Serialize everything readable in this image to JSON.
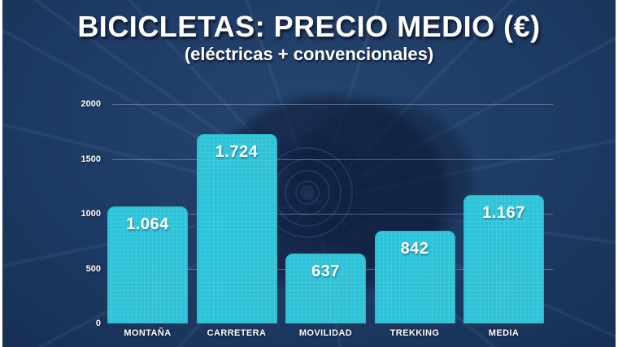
{
  "slide": {
    "title": "BICICLETAS: PRECIO MEDIO (€)",
    "subtitle": "(eléctricas + convencionales)"
  },
  "colors": {
    "background": "#1d3a63",
    "background_dark": "#152b4e",
    "bar": "#2cc3d8",
    "text": "#ffffff",
    "gridline_rgba": "rgba(202,218,240,0.35)"
  },
  "decor": {
    "spokes_icon": "bicycle-wheel-spokes",
    "center_icon": "bicycle-cassette-photo"
  },
  "chart_data": {
    "type": "bar",
    "title": "BICICLETAS: PRECIO MEDIO (€)",
    "subtitle": "(eléctricas + convencionales)",
    "categories": [
      "MONTAÑA",
      "CARRETERA",
      "MOVILIDAD",
      "TREKKING",
      "MEDIA"
    ],
    "values": [
      1064,
      1724,
      637,
      842,
      1167
    ],
    "value_labels": [
      "1.064",
      "1.724",
      "637",
      "842",
      "1.167"
    ],
    "ylim": [
      0,
      2000
    ],
    "yticks": [
      0,
      500,
      1000,
      1500,
      2000
    ],
    "ytick_labels": [
      "0",
      "500",
      "1000",
      "1500",
      "2000"
    ],
    "xlabel": "",
    "ylabel": "",
    "legend": "none",
    "grid": "faint horizontal lines at y ticks",
    "bar_color": "#2cc3d8",
    "value_label_position": "inside-top",
    "unit": "€"
  }
}
